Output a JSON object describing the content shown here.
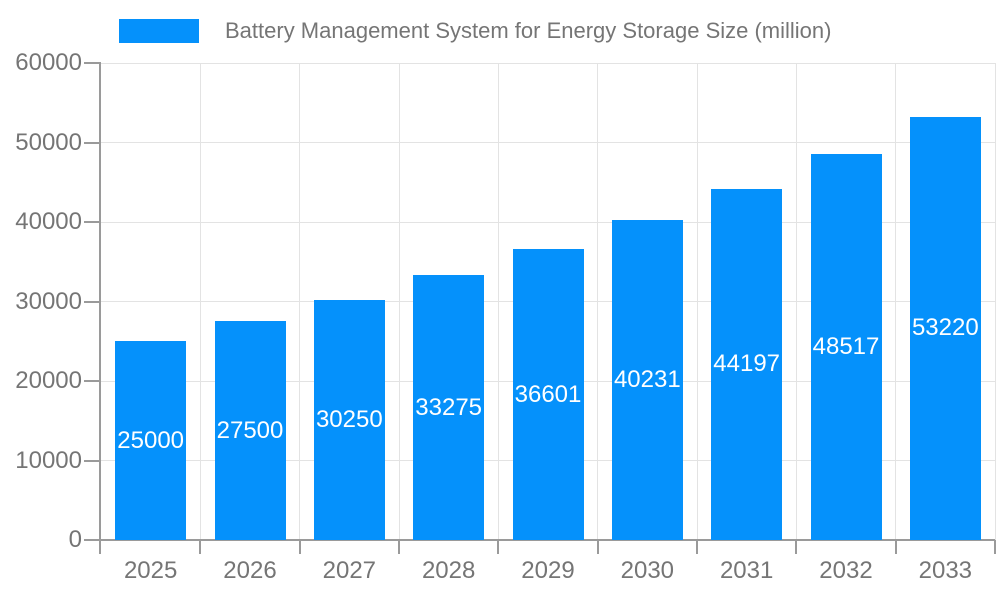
{
  "legend": {
    "label": "Battery Management System for Energy Storage Size (million)"
  },
  "colors": {
    "bar": "#0591fb",
    "grid": "#e3e3e3",
    "axis": "#9a9a9a",
    "text": "#757575",
    "bar_label": "#ffffff",
    "background": "#ffffff"
  },
  "chart_data": {
    "type": "bar",
    "title": "Battery Management System for Energy Storage Size (million)",
    "categories": [
      "2025",
      "2026",
      "2027",
      "2028",
      "2029",
      "2030",
      "2031",
      "2032",
      "2033"
    ],
    "series": [
      {
        "name": "Battery Management System for Energy Storage Size (million)",
        "values": [
          25000,
          27500,
          30250,
          33275,
          36601,
          40231,
          44197,
          48517,
          53220
        ]
      }
    ],
    "bar_labels": [
      "25000",
      "27500",
      "30250",
      "33275",
      "36601",
      "40231",
      "44197",
      "48517",
      "53220"
    ],
    "xlabel": "",
    "ylabel": "",
    "ylim": [
      0,
      60000
    ],
    "yticks": [
      0,
      10000,
      20000,
      30000,
      40000,
      50000,
      60000
    ],
    "ytick_labels": [
      "0",
      "10000",
      "20000",
      "30000",
      "40000",
      "50000",
      "60000"
    ],
    "grid": true,
    "legend_position": "top-left",
    "bar_label_position": "center"
  }
}
